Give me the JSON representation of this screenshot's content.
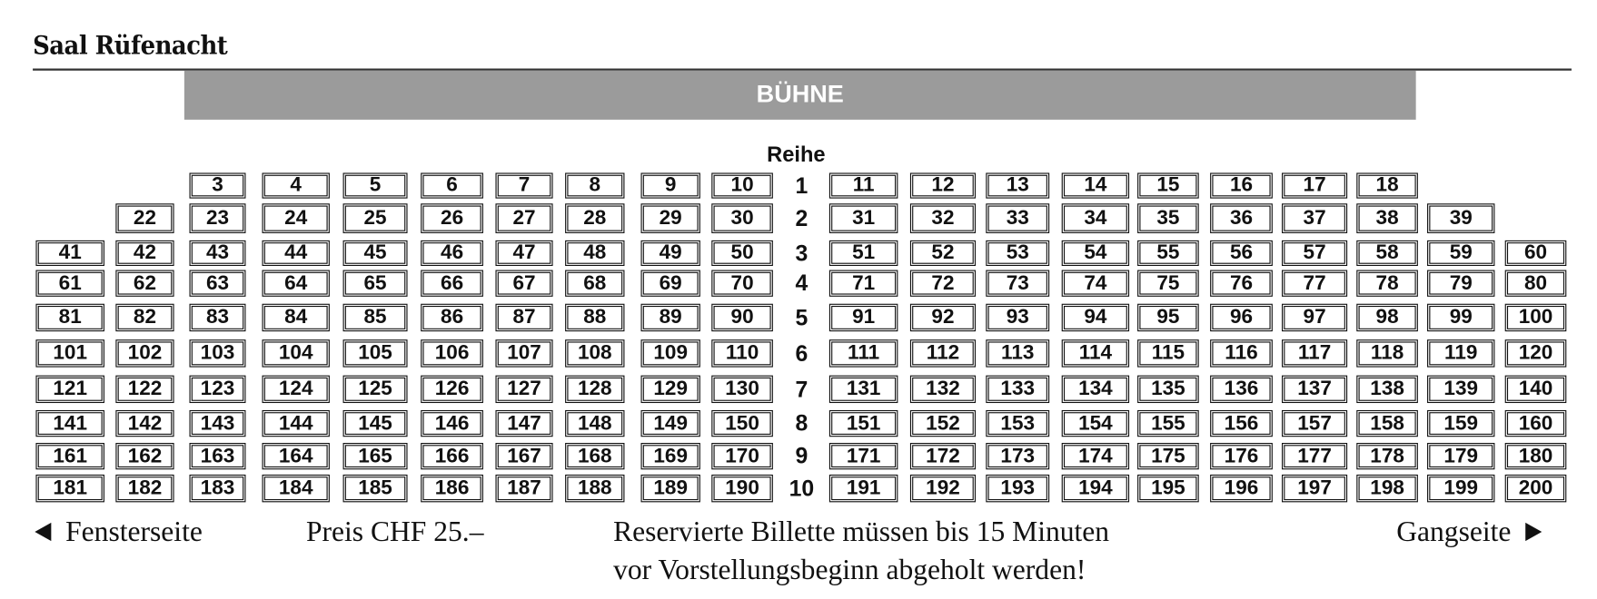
{
  "title": "Saal Rüfenacht",
  "stage_label": "BÜHNE",
  "row_header": "Reihe",
  "rows": [
    {
      "row": "1",
      "first_column": 3,
      "seats": [
        "3",
        "4",
        "5",
        "6",
        "7",
        "8",
        "9",
        "10",
        "11",
        "12",
        "13",
        "14",
        "15",
        "16",
        "17",
        "18"
      ]
    },
    {
      "row": "2",
      "first_column": 2,
      "seats": [
        "22",
        "23",
        "24",
        "25",
        "26",
        "27",
        "28",
        "29",
        "30",
        "31",
        "32",
        "33",
        "34",
        "35",
        "36",
        "37",
        "38",
        "39"
      ]
    },
    {
      "row": "3",
      "first_column": 1,
      "seats": [
        "41",
        "42",
        "43",
        "44",
        "45",
        "46",
        "47",
        "48",
        "49",
        "50",
        "51",
        "52",
        "53",
        "54",
        "55",
        "56",
        "57",
        "58",
        "59",
        "60"
      ]
    },
    {
      "row": "4",
      "first_column": 1,
      "seats": [
        "61",
        "62",
        "63",
        "64",
        "65",
        "66",
        "67",
        "68",
        "69",
        "70",
        "71",
        "72",
        "73",
        "74",
        "75",
        "76",
        "77",
        "78",
        "79",
        "80"
      ]
    },
    {
      "row": "5",
      "first_column": 1,
      "seats": [
        "81",
        "82",
        "83",
        "84",
        "85",
        "86",
        "87",
        "88",
        "89",
        "90",
        "91",
        "92",
        "93",
        "94",
        "95",
        "96",
        "97",
        "98",
        "99",
        "100"
      ]
    },
    {
      "row": "6",
      "first_column": 1,
      "seats": [
        "101",
        "102",
        "103",
        "104",
        "105",
        "106",
        "107",
        "108",
        "109",
        "110",
        "111",
        "112",
        "113",
        "114",
        "115",
        "116",
        "117",
        "118",
        "119",
        "120"
      ]
    },
    {
      "row": "7",
      "first_column": 1,
      "seats": [
        "121",
        "122",
        "123",
        "124",
        "125",
        "126",
        "127",
        "128",
        "129",
        "130",
        "131",
        "132",
        "133",
        "134",
        "135",
        "136",
        "137",
        "138",
        "139",
        "140"
      ]
    },
    {
      "row": "8",
      "first_column": 1,
      "seats": [
        "141",
        "142",
        "143",
        "144",
        "145",
        "146",
        "147",
        "148",
        "149",
        "150",
        "151",
        "152",
        "153",
        "154",
        "155",
        "156",
        "157",
        "158",
        "159",
        "160"
      ]
    },
    {
      "row": "9",
      "first_column": 1,
      "seats": [
        "161",
        "162",
        "163",
        "164",
        "165",
        "166",
        "167",
        "168",
        "169",
        "170",
        "171",
        "172",
        "173",
        "174",
        "175",
        "176",
        "177",
        "178",
        "179",
        "180"
      ]
    },
    {
      "row": "10",
      "first_column": 1,
      "seats": [
        "181",
        "182",
        "183",
        "184",
        "185",
        "186",
        "187",
        "188",
        "189",
        "190",
        "191",
        "192",
        "193",
        "194",
        "195",
        "196",
        "197",
        "198",
        "199",
        "200"
      ]
    }
  ],
  "footer": {
    "left_label": "Fensterseite",
    "price": "Preis CHF 25.–",
    "notice_line1": "Reservierte Billette müssen bis 15 Minuten",
    "notice_line2": "vor Vorstellungsbeginn abgeholt werden!",
    "right_label": "Gangseite"
  },
  "colors": {
    "stage": "#9b9b9b",
    "seat_border": "#111111"
  }
}
